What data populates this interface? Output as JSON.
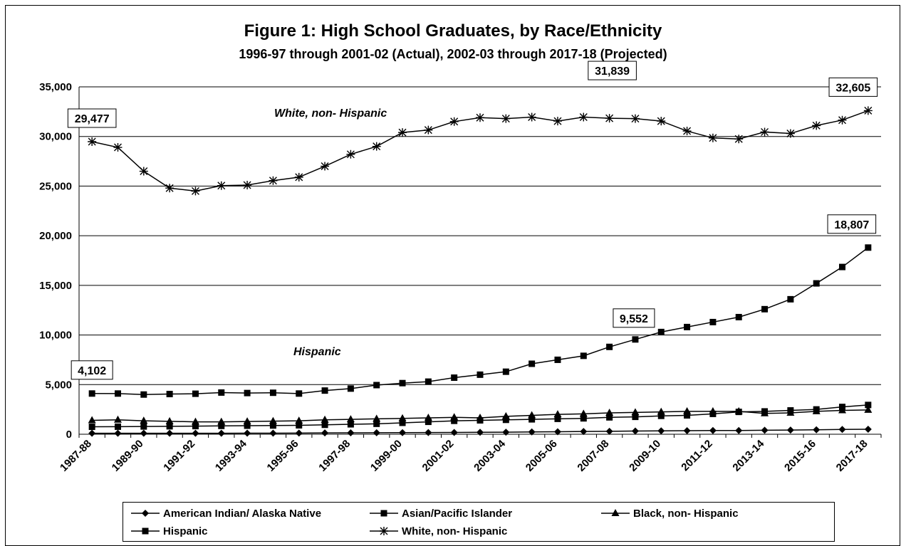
{
  "chart_data": {
    "type": "line",
    "title": "Figure 1: High School Graduates, by Race/Ethnicity",
    "subtitle": "1996-97 through 2001-02 (Actual), 2002-03 through 2017-18 (Projected)",
    "xlabel": "",
    "ylabel": "",
    "ylim": [
      0,
      35000
    ],
    "yticks": [
      "0",
      "5,000",
      "10,000",
      "15,000",
      "20,000",
      "25,000",
      "30,000",
      "35,000"
    ],
    "ytick_values": [
      0,
      5000,
      10000,
      15000,
      20000,
      25000,
      30000,
      35000
    ],
    "grid": true,
    "legend_position": "bottom",
    "categories": [
      "1987-88",
      "1988-89",
      "1989-90",
      "1990-91",
      "1991-92",
      "1992-93",
      "1993-94",
      "1994-95",
      "1995-96",
      "1996-97",
      "1997-98",
      "1998-99",
      "1999-00",
      "2000-01",
      "2001-02",
      "2002-03",
      "2003-04",
      "2004-05",
      "2005-06",
      "2006-07",
      "2007-08",
      "2008-09",
      "2009-10",
      "2010-11",
      "2011-12",
      "2012-13",
      "2013-14",
      "2014-15",
      "2015-16",
      "2016-17",
      "2017-18"
    ],
    "xtick_labels": [
      "1987-88",
      "1989-90",
      "1991-92",
      "1993-94",
      "1995-96",
      "1997-98",
      "1999-00",
      "2001-02",
      "2003-04",
      "2005-06",
      "2007-08",
      "2009-10",
      "2011-12",
      "2013-14",
      "2015-16",
      "2017-18"
    ],
    "series": [
      {
        "name": "American Indian/ Alaska Native",
        "marker": "diamond",
        "values": [
          100,
          100,
          100,
          100,
          100,
          100,
          110,
          110,
          120,
          130,
          140,
          150,
          160,
          170,
          180,
          200,
          210,
          230,
          250,
          280,
          300,
          320,
          340,
          360,
          380,
          380,
          400,
          420,
          450,
          480,
          500
        ]
      },
      {
        "name": "Asian/Pacific Islander",
        "marker": "square",
        "values": [
          750,
          760,
          780,
          800,
          820,
          840,
          860,
          880,
          900,
          950,
          1000,
          1050,
          1150,
          1250,
          1350,
          1400,
          1450,
          1500,
          1550,
          1600,
          1700,
          1750,
          1850,
          1900,
          2050,
          2250,
          2300,
          2400,
          2500,
          2750,
          2950
        ]
      },
      {
        "name": "Black, non- Hispanic",
        "marker": "triangle",
        "values": [
          1400,
          1450,
          1350,
          1300,
          1250,
          1250,
          1280,
          1320,
          1350,
          1450,
          1500,
          1550,
          1600,
          1650,
          1700,
          1650,
          1800,
          1900,
          2000,
          2050,
          2150,
          2200,
          2250,
          2300,
          2300,
          2300,
          2100,
          2150,
          2300,
          2400,
          2450
        ]
      },
      {
        "name": "Hispanic",
        "marker": "square",
        "values": [
          4102,
          4100,
          4000,
          4050,
          4080,
          4200,
          4150,
          4180,
          4100,
          4400,
          4600,
          4950,
          5150,
          5300,
          5700,
          6000,
          6300,
          7100,
          7500,
          7900,
          8800,
          9552,
          10300,
          10800,
          11300,
          11800,
          12600,
          13600,
          15200,
          16850,
          18807
        ]
      },
      {
        "name": "White, non- Hispanic",
        "marker": "star",
        "values": [
          29477,
          28900,
          26500,
          24800,
          24500,
          25050,
          25100,
          25550,
          25900,
          27000,
          28200,
          29000,
          30400,
          30650,
          31500,
          31900,
          31800,
          31950,
          31550,
          31950,
          31839,
          31800,
          31550,
          30550,
          29850,
          29750,
          30450,
          30300,
          31100,
          31650,
          32605
        ]
      }
    ],
    "series_labels": [
      {
        "series": "White, non- Hispanic",
        "text": "White, non- Hispanic"
      },
      {
        "series": "Hispanic",
        "text": "Hispanic"
      }
    ],
    "data_labels": [
      {
        "series": "White, non- Hispanic",
        "category": "1987-88",
        "text": "29,477"
      },
      {
        "series": "White, non- Hispanic",
        "category": "2007-08",
        "text": "31,839"
      },
      {
        "series": "White, non- Hispanic",
        "category": "2017-18",
        "text": "32,605"
      },
      {
        "series": "Hispanic",
        "category": "1987-88",
        "text": "4,102"
      },
      {
        "series": "Hispanic",
        "category": "2008-09",
        "text": "9,552"
      },
      {
        "series": "Hispanic",
        "category": "2017-18",
        "text": "18,807"
      }
    ]
  }
}
